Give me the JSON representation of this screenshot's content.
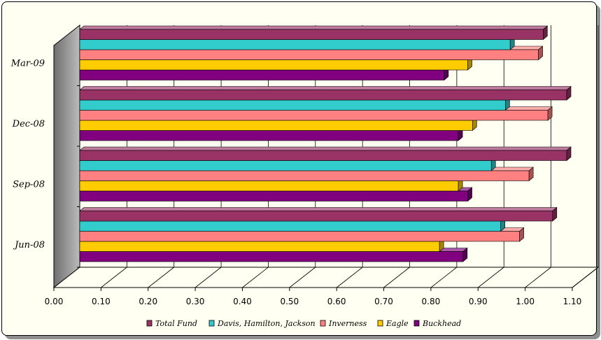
{
  "chart_data": {
    "type": "bar",
    "orientation": "horizontal",
    "3d": true,
    "categories": [
      "Jun-08",
      "Sep-08",
      "Dec-08",
      "Mar-09"
    ],
    "series": [
      {
        "name": "Total Fund",
        "color": "#993366",
        "values": [
          1.03,
          1.06,
          1.06,
          1.01
        ]
      },
      {
        "name": "Davis, Hamilton, Jackson",
        "color": "#33cccc",
        "values": [
          0.92,
          0.9,
          0.93,
          0.94
        ]
      },
      {
        "name": "Inverness",
        "color": "#ff8080",
        "values": [
          0.96,
          0.98,
          1.02,
          1.0
        ]
      },
      {
        "name": "Eagle",
        "color": "#ffcc00",
        "values": [
          0.79,
          0.83,
          0.86,
          0.85
        ]
      },
      {
        "name": "Buckhead",
        "color": "#800080",
        "values": [
          0.84,
          0.85,
          0.83,
          0.8
        ]
      }
    ],
    "xlim": [
      0,
      1.1
    ],
    "xticks": [
      "0.00",
      "0.10",
      "0.20",
      "0.30",
      "0.40",
      "0.50",
      "0.60",
      "0.70",
      "0.80",
      "0.90",
      "1.00",
      "1.10"
    ],
    "legend": "bottom",
    "grid": true
  }
}
